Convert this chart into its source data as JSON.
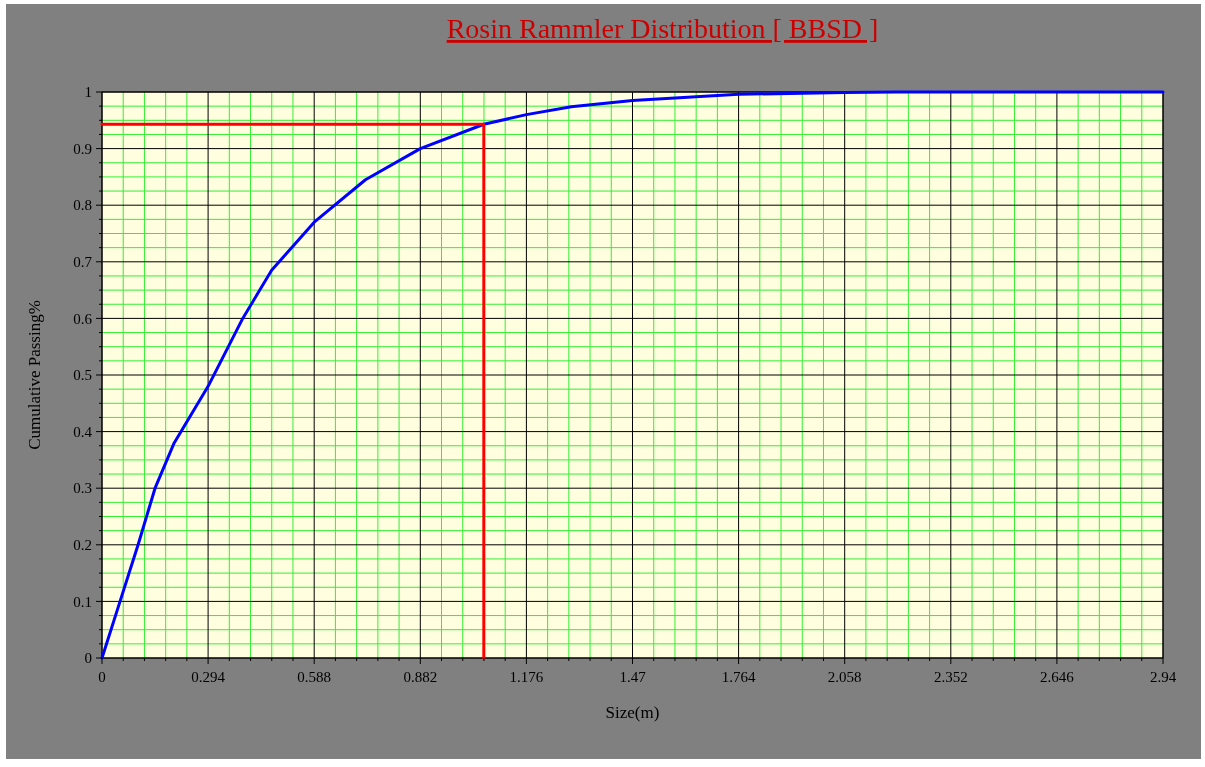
{
  "chart_data": {
    "type": "line",
    "title": "Rosin Rammler Distribution  [ BBSD ]",
    "xlabel": "Size(m)",
    "ylabel": "Cumulative Passing%",
    "xlim": [
      0,
      2.94
    ],
    "xticks": [
      0,
      {
        "value": 0.0588,
        "label": null
      },
      {
        "value": 0.1176,
        "label": null
      },
      {
        "value": 0.1764,
        "label": null
      },
      {
        "value": 0.2352,
        "label": null
      },
      0.294,
      {
        "value": 0.3528,
        "label": null
      },
      {
        "value": 0.4116,
        "label": null
      },
      {
        "value": 0.4704,
        "label": null
      },
      {
        "value": 0.5292,
        "label": null
      },
      0.588,
      {
        "value": 0.6468,
        "label": null
      },
      {
        "value": 0.7056,
        "label": null
      },
      {
        "value": 0.7644,
        "label": null
      },
      {
        "value": 0.8232,
        "label": null
      },
      0.882,
      {
        "value": 0.9408,
        "label": null
      },
      {
        "value": 0.9996,
        "label": null
      },
      {
        "value": 1.0584,
        "label": null
      },
      {
        "value": 1.1172,
        "label": null
      },
      1.176,
      {
        "value": 1.2348,
        "label": null
      },
      {
        "value": 1.2936,
        "label": null
      },
      {
        "value": 1.3524,
        "label": null
      },
      {
        "value": 1.4112,
        "label": null
      },
      1.47,
      {
        "value": 1.5288,
        "label": null
      },
      {
        "value": 1.5876,
        "label": null
      },
      {
        "value": 1.6464,
        "label": null
      },
      {
        "value": 1.7052,
        "label": null
      },
      1.764,
      {
        "value": 1.8228,
        "label": null
      },
      {
        "value": 1.8816,
        "label": null
      },
      {
        "value": 1.9404,
        "label": null
      },
      {
        "value": 1.9992,
        "label": null
      },
      2.058,
      {
        "value": 2.1168,
        "label": null
      },
      {
        "value": 2.1756,
        "label": null
      },
      {
        "value": 2.2344,
        "label": null
      },
      {
        "value": 2.2932,
        "label": null
      },
      2.352,
      {
        "value": 2.4108,
        "label": null
      },
      {
        "value": 2.4696,
        "label": null
      },
      {
        "value": 2.5284,
        "label": null
      },
      {
        "value": 2.5872,
        "label": null
      },
      2.646,
      {
        "value": 2.7048,
        "label": null
      },
      {
        "value": 2.7636,
        "label": null
      },
      {
        "value": 2.8224,
        "label": null
      },
      {
        "value": 2.8812,
        "label": null
      },
      2.94
    ],
    "ylim": [
      0,
      1
    ],
    "yticks": [
      0,
      {
        "value": 0.025,
        "label": null
      },
      {
        "value": 0.05,
        "label": null
      },
      {
        "value": 0.075,
        "label": null
      },
      0.1,
      {
        "value": 0.125,
        "label": null
      },
      {
        "value": 0.15,
        "label": null
      },
      {
        "value": 0.175,
        "label": null
      },
      0.2,
      {
        "value": 0.225,
        "label": null
      },
      {
        "value": 0.25,
        "label": null
      },
      {
        "value": 0.275,
        "label": null
      },
      0.3,
      {
        "value": 0.325,
        "label": null
      },
      {
        "value": 0.35,
        "label": null
      },
      {
        "value": 0.375,
        "label": null
      },
      0.4,
      {
        "value": 0.425,
        "label": null
      },
      {
        "value": 0.45,
        "label": null
      },
      {
        "value": 0.475,
        "label": null
      },
      0.5,
      {
        "value": 0.525,
        "label": null
      },
      {
        "value": 0.55,
        "label": null
      },
      {
        "value": 0.575,
        "label": null
      },
      0.6,
      {
        "value": 0.625,
        "label": null
      },
      {
        "value": 0.65,
        "label": null
      },
      {
        "value": 0.675,
        "label": null
      },
      0.7,
      {
        "value": 0.725,
        "label": null
      },
      {
        "value": 0.75,
        "label": null
      },
      {
        "value": 0.775,
        "label": null
      },
      0.8,
      {
        "value": 0.825,
        "label": null
      },
      {
        "value": 0.85,
        "label": null
      },
      {
        "value": 0.875,
        "label": null
      },
      0.9,
      {
        "value": 0.925,
        "label": null
      },
      {
        "value": 0.95,
        "label": null
      },
      {
        "value": 0.975,
        "label": null
      },
      1
    ],
    "grid": true,
    "marker": "none",
    "series": [
      {
        "color": "#0000ff",
        "x": [
          0,
          0.05,
          0.1,
          0.147,
          0.2,
          0.294,
          0.39,
          0.47,
          0.588,
          0.73,
          0.882,
          1.058,
          1.176,
          1.3,
          1.47,
          1.764,
          2.058,
          2.2,
          2.94
        ],
        "values": [
          0,
          0.1,
          0.2,
          0.3,
          0.38,
          0.48,
          0.6,
          0.685,
          0.77,
          0.845,
          0.9,
          0.943,
          0.96,
          0.974,
          0.985,
          0.996,
          0.999,
          1,
          1
        ]
      },
      {
        "color": "#ff0000",
        "x": [
          0,
          1.058,
          1.058
        ],
        "values": [
          0.943,
          0.943,
          0
        ]
      }
    ]
  }
}
